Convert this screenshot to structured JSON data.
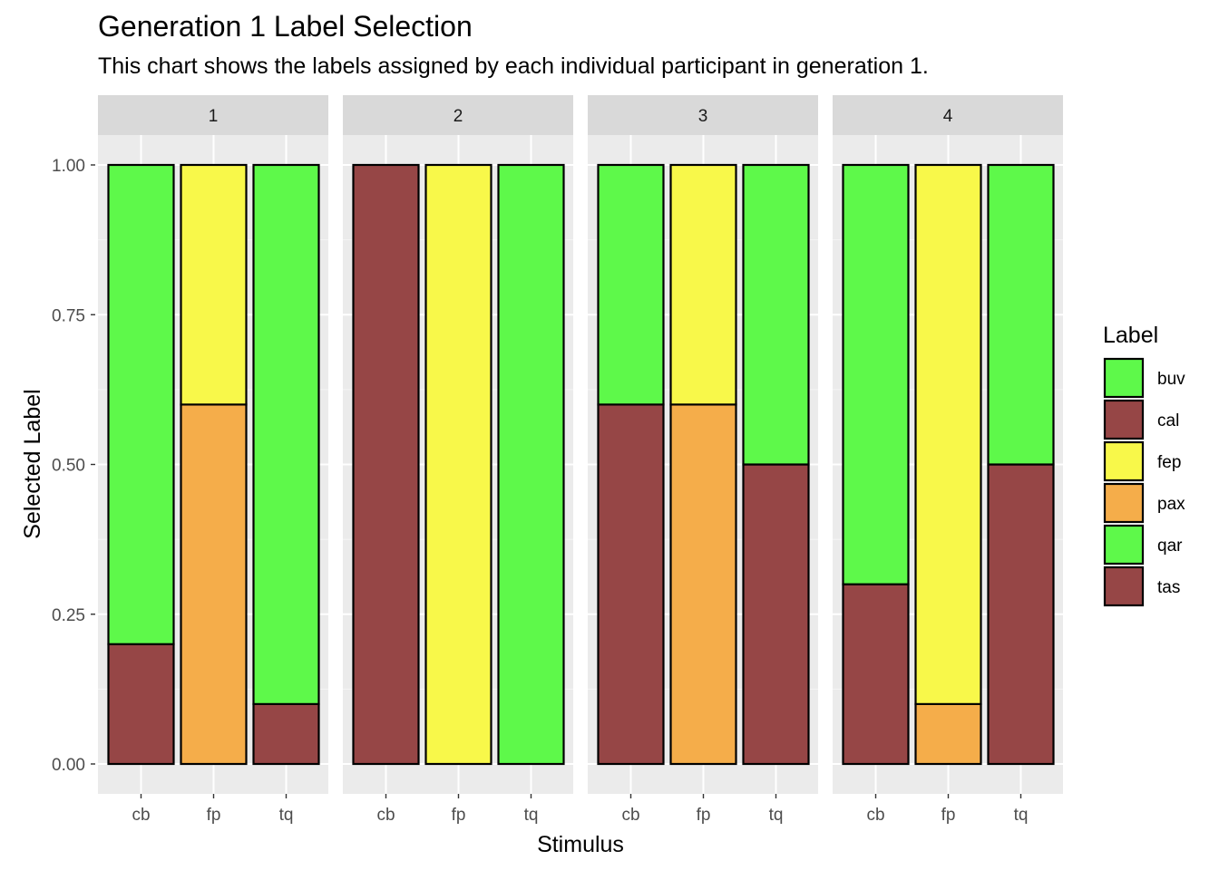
{
  "chart_data": {
    "type": "bar",
    "stacked": true,
    "title": "Generation 1 Label Selection",
    "subtitle": "This chart shows the labels assigned by each individual participant in generation 1.",
    "xlabel": "Stimulus",
    "ylabel": "Selected Label",
    "ylim": [
      0,
      1
    ],
    "yticks": [
      "0.00",
      "0.25",
      "0.50",
      "0.75",
      "1.00"
    ],
    "ytick_values": [
      0,
      0.25,
      0.5,
      0.75,
      1
    ],
    "categories": [
      "cb",
      "fp",
      "tq"
    ],
    "grid": true,
    "legend": {
      "title": "Label",
      "placement": "right",
      "entries": [
        {
          "name": "buv",
          "color": "#5EF94A"
        },
        {
          "name": "cal",
          "color": "#964646"
        },
        {
          "name": "fep",
          "color": "#F8F84A"
        },
        {
          "name": "pax",
          "color": "#F5AD4A"
        },
        {
          "name": "qar",
          "color": "#5EF94A"
        },
        {
          "name": "tas",
          "color": "#964646"
        }
      ]
    },
    "facets": [
      {
        "name": "1",
        "bars": [
          {
            "category": "cb",
            "segments": [
              {
                "label": "tas",
                "value": 0.2
              },
              {
                "label": "qar",
                "value": 0.8
              }
            ]
          },
          {
            "category": "fp",
            "segments": [
              {
                "label": "pax",
                "value": 0.6
              },
              {
                "label": "fep",
                "value": 0.4
              }
            ]
          },
          {
            "category": "tq",
            "segments": [
              {
                "label": "tas",
                "value": 0.1
              },
              {
                "label": "qar",
                "value": 0.9
              }
            ]
          }
        ]
      },
      {
        "name": "2",
        "bars": [
          {
            "category": "cb",
            "segments": [
              {
                "label": "cal",
                "value": 1.0
              }
            ]
          },
          {
            "category": "fp",
            "segments": [
              {
                "label": "fep",
                "value": 1.0
              }
            ]
          },
          {
            "category": "tq",
            "segments": [
              {
                "label": "buv",
                "value": 1.0
              }
            ]
          }
        ]
      },
      {
        "name": "3",
        "bars": [
          {
            "category": "cb",
            "segments": [
              {
                "label": "tas",
                "value": 0.6
              },
              {
                "label": "qar",
                "value": 0.4
              }
            ]
          },
          {
            "category": "fp",
            "segments": [
              {
                "label": "pax",
                "value": 0.6
              },
              {
                "label": "fep",
                "value": 0.4
              }
            ]
          },
          {
            "category": "tq",
            "segments": [
              {
                "label": "tas",
                "value": 0.5
              },
              {
                "label": "qar",
                "value": 0.5
              }
            ]
          }
        ]
      },
      {
        "name": "4",
        "bars": [
          {
            "category": "cb",
            "segments": [
              {
                "label": "tas",
                "value": 0.3
              },
              {
                "label": "qar",
                "value": 0.7
              }
            ]
          },
          {
            "category": "fp",
            "segments": [
              {
                "label": "pax",
                "value": 0.1
              },
              {
                "label": "fep",
                "value": 0.9
              }
            ]
          },
          {
            "category": "tq",
            "segments": [
              {
                "label": "tas",
                "value": 0.5
              },
              {
                "label": "qar",
                "value": 0.5
              }
            ]
          }
        ]
      }
    ]
  }
}
